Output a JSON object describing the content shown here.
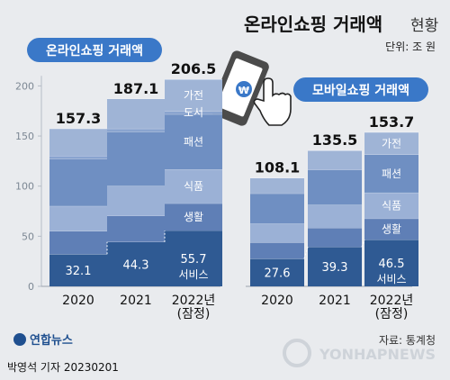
{
  "header": {
    "title_bold": "온라인쇼핑 거래액",
    "title_light": "현황",
    "unit": "단위: 조 원"
  },
  "colors": {
    "band_top": "#9fb4d6",
    "band_2": "#6f8fc2",
    "band_3": "#95acd3",
    "band_4": "#5f7fb6",
    "band_bottom": "#2f5a93",
    "pill": "#3a78c8",
    "bg": "#e9ebee"
  },
  "chart_data": [
    {
      "type": "bar",
      "title": "온라인쇼핑 거래액",
      "categories": [
        "2020",
        "2021",
        "2022년\n(잠정)"
      ],
      "categories_lines": [
        [
          "2020"
        ],
        [
          "2021"
        ],
        [
          "2022년",
          "(잠정)"
        ]
      ],
      "totals": [
        157.3,
        187.1,
        206.5
      ],
      "series": [
        {
          "name": "서비스",
          "values": [
            32.1,
            44.3,
            55.7
          ]
        },
        {
          "name": "생활",
          "values": [
            23,
            26,
            27
          ]
        },
        {
          "name": "식품",
          "values": [
            25,
            30,
            34
          ]
        },
        {
          "name": "패션",
          "values": [
            47,
            54,
            55
          ]
        },
        {
          "name": "도서",
          "values": [
            3,
            3,
            3
          ]
        },
        {
          "name": "가전",
          "values": [
            27.2,
            29.8,
            31.8
          ]
        }
      ],
      "yticks": [
        0,
        50,
        100,
        150,
        200
      ],
      "ylim": [
        0,
        210
      ],
      "labels_on_last_bar": [
        "가전",
        "도서",
        "패션",
        "식품",
        "생활",
        "서비스"
      ]
    },
    {
      "type": "bar",
      "title": "모바일쇼핑 거래액",
      "categories": [
        "2020",
        "2021",
        "2022년\n(잠정)"
      ],
      "categories_lines": [
        [
          "2020"
        ],
        [
          "2021"
        ],
        [
          "2022년",
          "(잠정)"
        ]
      ],
      "totals": [
        108.1,
        135.5,
        153.7
      ],
      "series": [
        {
          "name": "서비스",
          "values": [
            27.6,
            39.3,
            46.5
          ]
        },
        {
          "name": "생활",
          "values": [
            16,
            19,
            21
          ]
        },
        {
          "name": "식품",
          "values": [
            19,
            23,
            26
          ]
        },
        {
          "name": "패션",
          "values": [
            30,
            35,
            38
          ]
        },
        {
          "name": "가전",
          "values": [
            15.5,
            19.2,
            22.2
          ]
        }
      ],
      "ylim": [
        0,
        210
      ],
      "labels_on_last_bar": [
        "가전",
        "패션",
        "식품",
        "생활",
        "서비스"
      ]
    }
  ],
  "footer": {
    "logo_text": "연합뉴스",
    "source": "자료: 통계청",
    "credit": "박영석 기자  20230201",
    "watermark": "YONHAPNEWS"
  }
}
